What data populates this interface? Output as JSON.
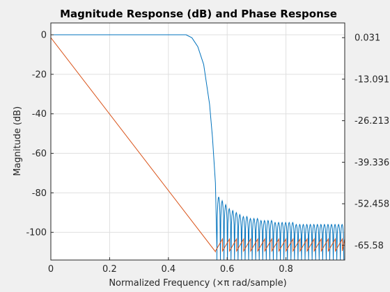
{
  "chart_data": {
    "type": "line",
    "title": "Magnitude Response (dB) and Phase Response",
    "xlabel": "Normalized Frequency (×π rad/sample)",
    "ylabel": "Magnitude (dB)",
    "y2label": "",
    "xlim": [
      0,
      1
    ],
    "ylim": [
      -114,
      6
    ],
    "y2lim": [
      -70.24,
      4.68
    ],
    "grid": true,
    "xticks": [
      0,
      0.2,
      0.4,
      0.6,
      0.8
    ],
    "xtick_labels": [
      "0",
      "0.2",
      "0.4",
      "0.6",
      "0.8"
    ],
    "yticks": [
      0,
      -20,
      -40,
      -60,
      -80,
      -100
    ],
    "ytick_labels": [
      "0",
      "-20",
      "-40",
      "-60",
      "-80",
      "-100"
    ],
    "y2ticks": [
      0.031,
      -13.091,
      -26.213,
      -39.336,
      -52.458,
      -65.58
    ],
    "y2tick_labels": [
      "0.031",
      "-13.091",
      "-26.213",
      "-39.336",
      "-52.458",
      "-65.58"
    ],
    "series": [
      {
        "axis": "left",
        "color": "#0072BD",
        "passband": {
          "x": [
            0,
            0.46
          ],
          "y": [
            0,
            0
          ]
        },
        "transition": {
          "x": [
            0.46,
            0.48,
            0.5,
            0.52,
            0.54,
            0.55,
            0.56,
            0.565
          ],
          "y": [
            0,
            -1.5,
            -6,
            -15,
            -35,
            -52,
            -75,
            -108
          ]
        },
        "stopband_lobes_x": [
          0.565,
          0.577,
          0.589,
          0.601,
          0.613,
          0.625,
          0.637,
          0.649,
          0.661,
          0.673,
          0.685,
          0.697,
          0.709,
          0.721,
          0.733,
          0.745,
          0.757,
          0.769,
          0.781,
          0.793,
          0.805,
          0.817,
          0.829,
          0.841,
          0.853,
          0.865,
          0.877,
          0.889,
          0.901,
          0.913,
          0.925,
          0.937,
          0.949,
          0.961,
          0.973,
          0.985,
          0.997
        ],
        "stopband_peaks_db": [
          -82,
          -84,
          -86,
          -88,
          -89,
          -90,
          -91,
          -92,
          -92,
          -93,
          -93,
          -93,
          -94,
          -94,
          -94,
          -94,
          -95,
          -95,
          -95,
          -95,
          -95,
          -95,
          -96,
          -96,
          -96,
          -96,
          -96,
          -96,
          -96,
          -96,
          -96,
          -96,
          -96,
          -96,
          -96,
          -96
        ],
        "stopband_floor_db": -114
      },
      {
        "axis": "right",
        "color": "#D95319",
        "linear": {
          "x": [
            0,
            0.56
          ],
          "y": [
            0.031,
            -67.6
          ]
        },
        "sawtooth": {
          "x_start": 0.56,
          "x_end": 1.0,
          "period": 0.024,
          "low": -67.4,
          "high": -63.6
        }
      }
    ]
  }
}
